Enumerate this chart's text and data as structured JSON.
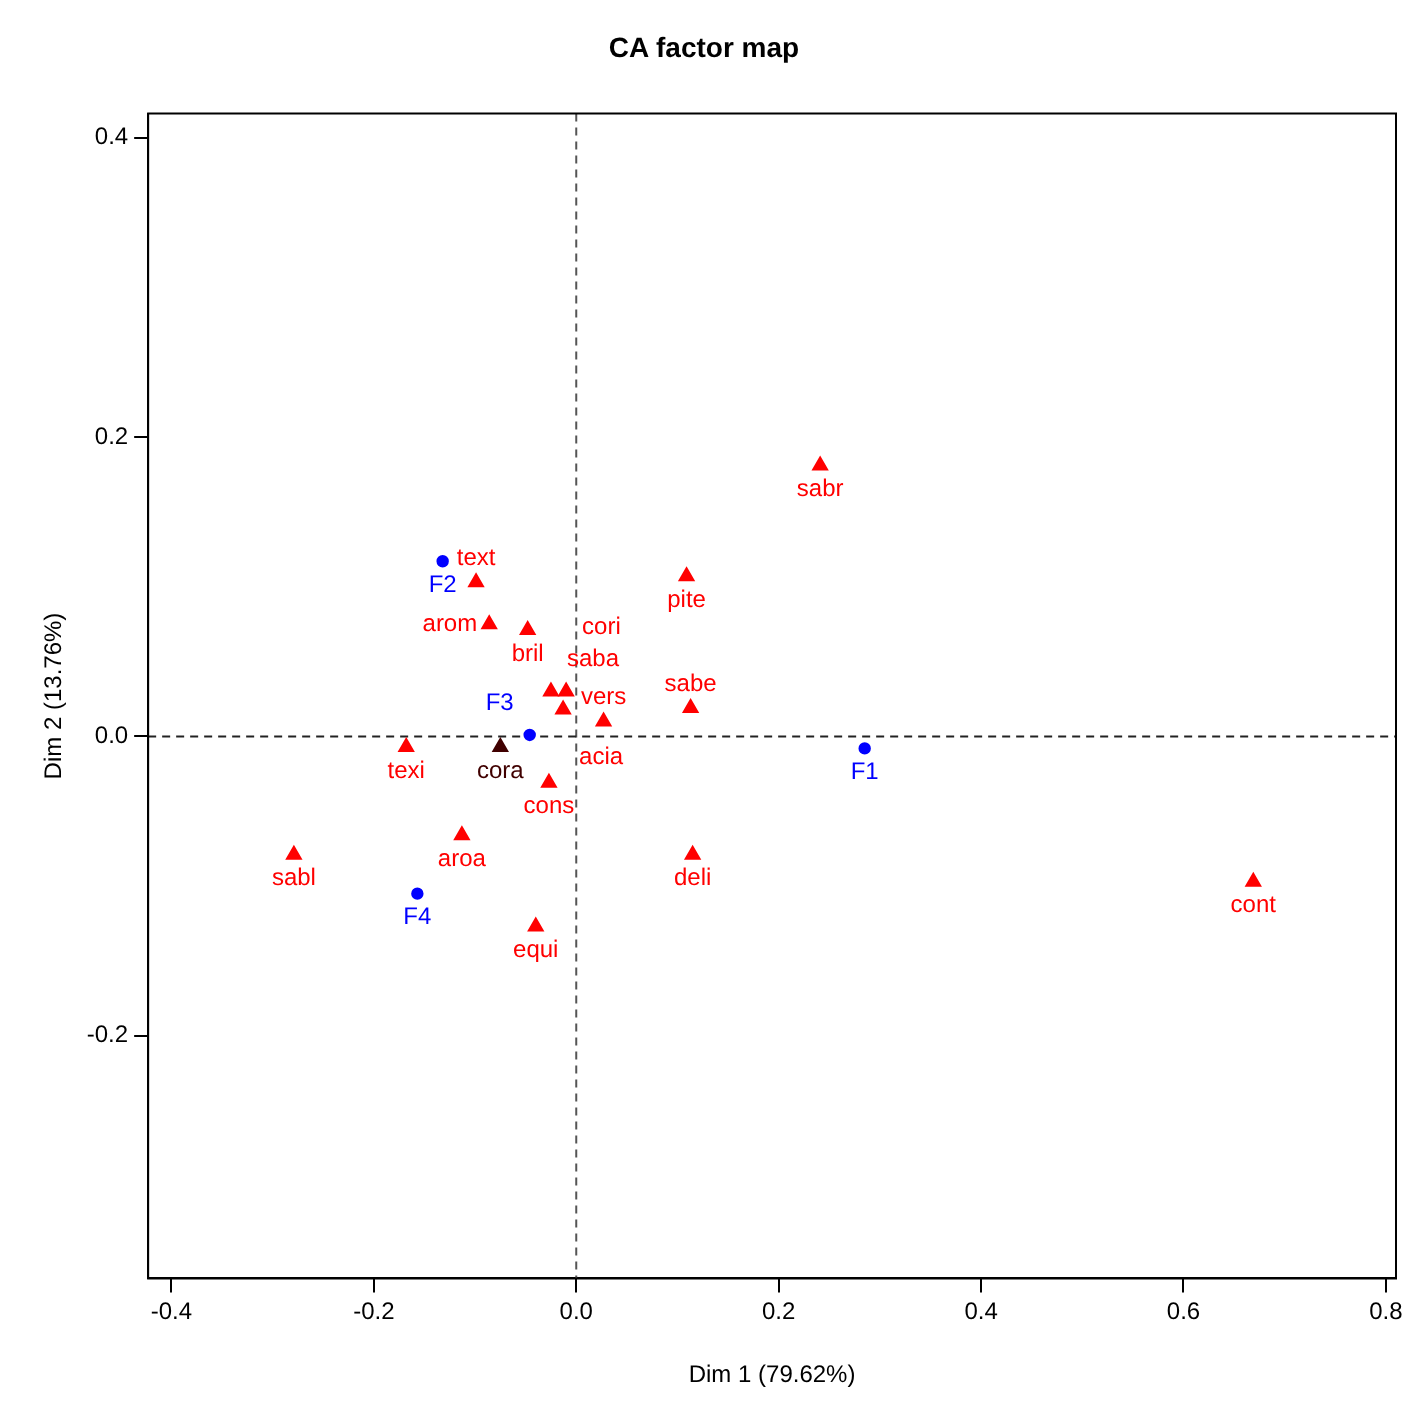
{
  "chart_data": {
    "type": "scatter",
    "title": "CA factor map",
    "xlabel": "Dim 1 (79.62%)",
    "ylabel": "Dim 2 (13.76%)",
    "xlim": [
      -0.423,
      0.81
    ],
    "ylim": [
      -0.362,
      0.416
    ],
    "xticks": [
      -0.4,
      -0.2,
      {
        "value": 0,
        "label": "0.0"
      },
      0.2,
      0.4,
      0.6,
      0.8
    ],
    "yticks": [
      -0.2,
      {
        "value": 0,
        "label": "0.0"
      },
      0.2,
      0.4
    ],
    "grid": false,
    "legend": false,
    "ref_lines": [
      {
        "axis": "x",
        "value": 0,
        "line_style": "dashed",
        "color": "#555555"
      },
      {
        "axis": "y",
        "value": 0,
        "line_style": "dashed",
        "color": "#222222"
      }
    ],
    "series": [
      {
        "color": "#0000ff",
        "marker": "circle",
        "x": [
          0.285,
          -0.132,
          -0.046,
          -0.157
        ],
        "values": [
          -0.008,
          0.117,
          0.001,
          -0.105
        ],
        "value_labels": [
          "F1",
          "F2",
          "F3",
          "F4"
        ]
      },
      {
        "color": "#ff0000",
        "marker": "triangle",
        "x": [
          0.241,
          0.109,
          0.113,
          0.115,
          0.669,
          -0.099,
          -0.086,
          -0.048,
          -0.025,
          -0.01,
          -0.013,
          0.027,
          -0.075,
          -0.168,
          -0.027,
          -0.113,
          -0.279,
          -0.04
        ],
        "values": [
          0.181,
          0.107,
          0.019,
          -0.079,
          -0.097,
          0.103,
          0.075,
          0.071,
          0.03,
          0.03,
          0.018,
          0.01,
          -0.007,
          -0.007,
          -0.031,
          -0.066,
          -0.079,
          -0.127
        ],
        "colors": [
          "#ff0000",
          "#ff0000",
          "#ff0000",
          "#ff0000",
          "#ff0000",
          "#ff0000",
          "#ff0000",
          "#ff0000",
          "#ff0000",
          "#ff0000",
          "#ff0000",
          "#ff0000",
          "#400000",
          "#ff0000",
          "#ff0000",
          "#ff0000",
          "#ff0000",
          "#ff0000"
        ],
        "value_labels": [
          "sabr",
          "pite",
          "sabe",
          "deli",
          "cont",
          "text",
          "arom",
          "bril",
          "saba",
          "cori",
          "acia",
          "vers",
          "cora",
          "texi",
          "cons",
          "aroa",
          "sabl",
          "equi"
        ]
      }
    ]
  }
}
